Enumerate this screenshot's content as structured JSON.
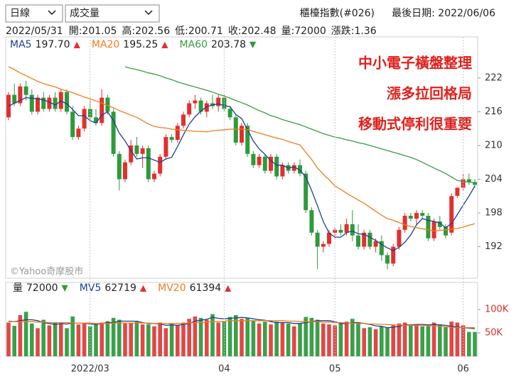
{
  "controls": {
    "period": "日線",
    "indicator": "成交量"
  },
  "header": {
    "index_name": "櫃檯指數(#026)",
    "last_date": "最後日期: 2022/06/06"
  },
  "info": {
    "date": "2022/05/31",
    "items": [
      "開:201.05",
      "高:202.56",
      "低:200.71",
      "收:202.48",
      "量:72000",
      "漲跌:1.36"
    ]
  },
  "chart_data": [
    {
      "type": "candlestick",
      "up_color": "#e0302f",
      "down_color": "#2e9a3c",
      "open": [
        215,
        219,
        217.5,
        220.5,
        219,
        216,
        218.5,
        216.5,
        218.5,
        216.5,
        219.5,
        216,
        211.5,
        213,
        216.5,
        215,
        214,
        218.5,
        216,
        208.5,
        204,
        207,
        210,
        208.5,
        209.5,
        204,
        205,
        208,
        211.5,
        211,
        213.5,
        215.5,
        217.5,
        218,
        216,
        217.5,
        217,
        218.5,
        216.5,
        215,
        210.5,
        213.5,
        208.5,
        206.5,
        208,
        205.5,
        208,
        204.5,
        206.5,
        205.5,
        206.5,
        205,
        198.5,
        194.5,
        192,
        192.5,
        194.5,
        195,
        194.5,
        196,
        194,
        192,
        194.5,
        192,
        193,
        190.5,
        189,
        192,
        195,
        197.5,
        197,
        198,
        197.5,
        193.5,
        196.5,
        195.5,
        194.5,
        201.05,
        202.5,
        204,
        203.5
      ],
      "high": [
        219.5,
        221,
        221,
        221.5,
        220,
        219,
        219.5,
        219,
        219.5,
        220,
        220,
        217,
        213.5,
        217,
        218,
        216.5,
        220,
        219,
        216.5,
        209,
        207.5,
        211,
        211.5,
        210,
        210,
        205.5,
        208.5,
        212,
        212,
        214,
        216,
        218,
        219,
        218.5,
        218,
        219,
        219,
        219,
        217,
        215.5,
        214,
        214,
        209,
        208.5,
        208.5,
        208.5,
        208.5,
        207,
        207,
        207,
        207.5,
        205.5,
        199,
        195,
        193,
        195,
        195.5,
        196,
        197,
        198.5,
        196,
        195,
        195,
        193.5,
        194,
        191,
        192.5,
        195.5,
        198,
        198,
        198.5,
        198.5,
        198,
        197,
        197.5,
        196,
        201.5,
        202.56,
        205,
        205,
        204
      ],
      "low": [
        214.5,
        217,
        217,
        218,
        215.5,
        215.5,
        216,
        216,
        216,
        216,
        215.5,
        211,
        211,
        212.5,
        214.5,
        213.5,
        213.5,
        215.5,
        208,
        202,
        203.5,
        206.5,
        208,
        206,
        203.5,
        203.5,
        204.5,
        207.5,
        210.5,
        210.5,
        213,
        215,
        216.5,
        215.5,
        215,
        216.5,
        216,
        216,
        214.5,
        210,
        210,
        208,
        206,
        206,
        205,
        205,
        204,
        204,
        205,
        205,
        204.5,
        198,
        194,
        188,
        191,
        192,
        193.5,
        194,
        194,
        193,
        191.5,
        191.5,
        191.5,
        191,
        189.5,
        188,
        188.5,
        191.5,
        194.5,
        196.5,
        196,
        197,
        193,
        193,
        195,
        193.5,
        194,
        200.71,
        202,
        203,
        202.5
      ],
      "close": [
        219,
        217.5,
        220.5,
        219,
        216,
        218.5,
        216.5,
        218.5,
        216.5,
        219.5,
        216,
        211.5,
        213,
        216.5,
        215,
        214,
        218.5,
        216,
        208.5,
        204,
        207,
        210,
        208.5,
        209.5,
        204,
        205,
        208,
        211.5,
        211,
        213.5,
        215.5,
        217.5,
        218,
        216,
        217.5,
        217,
        218.5,
        216.5,
        215,
        210.5,
        213.5,
        208.5,
        206.5,
        208,
        205.5,
        208,
        204.5,
        206.5,
        205.5,
        206.5,
        205,
        198.5,
        194.5,
        192,
        192.5,
        194.5,
        195,
        194.5,
        196,
        194,
        192,
        194.5,
        192,
        193,
        190.5,
        189,
        192,
        195,
        197.5,
        197,
        198,
        197.5,
        193.5,
        196.5,
        195.5,
        194,
        201,
        202.48,
        204,
        203.5,
        203
      ],
      "series": [
        {
          "name": "MA5",
          "color": "#1d3f94",
          "value_label": "197.70",
          "arrow": "▲",
          "arrow_color": "#e0302f",
          "values": [
            217,
            217.5,
            218,
            218.5,
            218.4,
            218.3,
            218.1,
            217.7,
            217.2,
            217.9,
            217.4,
            216.4,
            215.3,
            215.3,
            214.4,
            214,
            215.4,
            216,
            214.4,
            212.2,
            210.8,
            209.1,
            207.6,
            207.8,
            207.8,
            207.4,
            207,
            207.6,
            207.9,
            209.8,
            211.9,
            213.8,
            215.1,
            216.1,
            216.9,
            217.2,
            217.4,
            217.1,
            216.9,
            215.5,
            214.8,
            212.8,
            210.8,
            209.4,
            208.4,
            207.3,
            206.5,
            206.5,
            206,
            206.2,
            205.6,
            204.4,
            202,
            199.3,
            196.5,
            194.4,
            193.7,
            193.7,
            194.5,
            194.8,
            194.3,
            194.2,
            193.7,
            193.1,
            192.4,
            191.8,
            191.3,
            191.9,
            192.8,
            194.1,
            195.9,
            197,
            196.7,
            196.5,
            196.2,
            195.4,
            196.1,
            197.7,
            199.4,
            201,
            202.8
          ]
        },
        {
          "name": "MA20",
          "color": "#ee7d1c",
          "value_label": "195.25",
          "arrow": "▲",
          "arrow_color": "#e0302f",
          "values": [
            224,
            223.5,
            222.9,
            222.4,
            221.9,
            221.4,
            221,
            220.7,
            220.4,
            220,
            219.7,
            219.4,
            219,
            218.6,
            218.3,
            217.9,
            217.5,
            217.1,
            216.7,
            216.2,
            215.8,
            215.4,
            215,
            214.4,
            213.8,
            213.4,
            213.2,
            213.1,
            212.9,
            212.8,
            212.7,
            212.6,
            212.5,
            212.5,
            212.4,
            212.6,
            212.7,
            212.8,
            212.9,
            212.9,
            212.9,
            212.8,
            212.5,
            212.2,
            211.9,
            211.6,
            211.3,
            211.1,
            210.7,
            210.4,
            210.1,
            208.8,
            207.5,
            206,
            204.9,
            203.9,
            202.8,
            202.2,
            201.5,
            200.9,
            200.3,
            199.7,
            199,
            198.3,
            197.6,
            197,
            196.7,
            196.3,
            195.9,
            195.6,
            195.4,
            195.2,
            195,
            194.8,
            194.9,
            195,
            195.1,
            195.25,
            195.5,
            195.8,
            196.1
          ]
        },
        {
          "name": "MA60",
          "color": "#3c9a44",
          "value_label": "203.78",
          "arrow": "▼",
          "arrow_color": "#2e9a3c",
          "values": [
            null,
            null,
            null,
            null,
            null,
            null,
            null,
            null,
            null,
            null,
            null,
            null,
            null,
            null,
            null,
            null,
            null,
            null,
            null,
            null,
            224,
            223.7,
            223.5,
            223.2,
            222.9,
            222.7,
            222.4,
            222,
            221.7,
            221.3,
            221,
            220.7,
            220.4,
            220.1,
            219.8,
            219.5,
            219.1,
            218.8,
            218.4,
            218,
            217.6,
            217.2,
            216.7,
            216.2,
            215.8,
            215.3,
            215,
            214.6,
            214.3,
            214,
            213.7,
            213.3,
            212.9,
            212.5,
            212.1,
            211.8,
            211.5,
            211.3,
            211,
            210.8,
            210.5,
            210.3,
            210,
            209.7,
            209.4,
            209.1,
            208.8,
            208.5,
            208.2,
            207.9,
            207.5,
            207,
            206.5,
            206,
            205.5,
            205,
            204.4,
            203.78,
            203.6,
            203.5,
            203.4
          ]
        }
      ],
      "ylim": [
        186.4,
        229.3
      ],
      "yticks": [
        192,
        198,
        204,
        210,
        216,
        222
      ],
      "annotations": [
        "中小電子橫盤整理",
        "漲多拉回格局",
        "移動式停利很重要"
      ],
      "annotation_color": "#e0201c",
      "watermark": "©Yahoo奇摩股市"
    },
    {
      "type": "bar",
      "name": "量",
      "value_label": "72000",
      "arrow": "▼",
      "arrow_color": "#2e9a3c",
      "up_color": "#e04848",
      "down_color": "#3aa04a",
      "categories": [
        null,
        null,
        null,
        null,
        null,
        null,
        null,
        null,
        null,
        null,
        null,
        null,
        null,
        null,
        "2022/03",
        null,
        null,
        null,
        null,
        null,
        null,
        null,
        null,
        null,
        null,
        null,
        null,
        null,
        null,
        null,
        null,
        null,
        null,
        null,
        null,
        null,
        null,
        "04",
        null,
        null,
        null,
        null,
        null,
        null,
        null,
        null,
        null,
        null,
        null,
        null,
        null,
        null,
        null,
        null,
        null,
        null,
        "05",
        null,
        null,
        null,
        null,
        null,
        null,
        null,
        null,
        null,
        null,
        null,
        null,
        null,
        null,
        null,
        null,
        null,
        null,
        null,
        null,
        null,
        "06",
        null,
        null
      ],
      "values": [
        72000,
        65000,
        88000,
        95000,
        70000,
        60000,
        78000,
        66000,
        72000,
        70000,
        60000,
        85000,
        68000,
        70000,
        64000,
        68000,
        72000,
        75000,
        82000,
        78000,
        70000,
        72000,
        74000,
        68000,
        68000,
        64000,
        72000,
        60000,
        70000,
        66000,
        72000,
        80000,
        85000,
        82000,
        78000,
        90000,
        72000,
        74000,
        84000,
        88000,
        80000,
        82000,
        76000,
        70000,
        74000,
        68000,
        74000,
        72000,
        70000,
        64000,
        70000,
        84000,
        82000,
        78000,
        70000,
        68000,
        66000,
        70000,
        74000,
        80000,
        72000,
        60000,
        62000,
        58000,
        64000,
        62000,
        66000,
        70000,
        72000,
        66000,
        68000,
        64000,
        64000,
        72000,
        68000,
        62000,
        74000,
        72000,
        66000,
        52000,
        52000
      ],
      "series": [
        {
          "name": "MV5",
          "color": "#1d3f94",
          "value_label": "62719",
          "arrow": "▲",
          "arrow_color": "#e0302f",
          "values": [
            75000,
            74000,
            76000,
            78000,
            78000,
            76000,
            72000,
            70000,
            68000,
            70000,
            69000,
            71000,
            71000,
            71000,
            69000,
            68000,
            70000,
            72000,
            72000,
            75000,
            75000,
            75000,
            75000,
            72000,
            70000,
            70000,
            69000,
            66000,
            67000,
            66000,
            68000,
            70000,
            75000,
            77000,
            79000,
            83000,
            81000,
            80000,
            81000,
            82000,
            83000,
            82000,
            80000,
            78000,
            77000,
            74000,
            72000,
            72000,
            72000,
            70000,
            70000,
            72000,
            74000,
            76000,
            76000,
            76000,
            74000,
            70000,
            70000,
            72000,
            72000,
            70000,
            68000,
            65000,
            64000,
            61000,
            62000,
            64000,
            67000,
            67000,
            68000,
            68000,
            67000,
            68000,
            67000,
            66000,
            64000,
            62719,
            61000,
            60000,
            59000
          ]
        },
        {
          "name": "MV20",
          "color": "#ee7d1c",
          "value_label": "61394",
          "arrow": "▲",
          "arrow_color": "#e0302f",
          "values": [
            74000,
            74000,
            74000,
            74000,
            74000,
            73000,
            73000,
            72000,
            72000,
            72000,
            72000,
            71000,
            71000,
            71000,
            71000,
            70000,
            70000,
            70000,
            71000,
            71000,
            71000,
            71000,
            71000,
            71000,
            71000,
            70000,
            70000,
            70000,
            70000,
            70000,
            70000,
            71000,
            72000,
            72000,
            73000,
            74000,
            74000,
            75000,
            76000,
            76000,
            76000,
            76000,
            76000,
            76000,
            76000,
            76000,
            76000,
            76000,
            75000,
            75000,
            74000,
            74000,
            74000,
            74000,
            73000,
            73000,
            72000,
            72000,
            71000,
            71000,
            70000,
            70000,
            69000,
            69000,
            68000,
            68000,
            67000,
            67000,
            66000,
            66000,
            66000,
            66000,
            65000,
            65000,
            64000,
            63000,
            62000,
            61394,
            61000,
            61000,
            61000
          ]
        }
      ],
      "ylim": [
        0,
        157600
      ],
      "yticks": [
        {
          "value": 50000,
          "label": "50K"
        },
        {
          "value": 100000,
          "label": "100K"
        }
      ]
    }
  ]
}
